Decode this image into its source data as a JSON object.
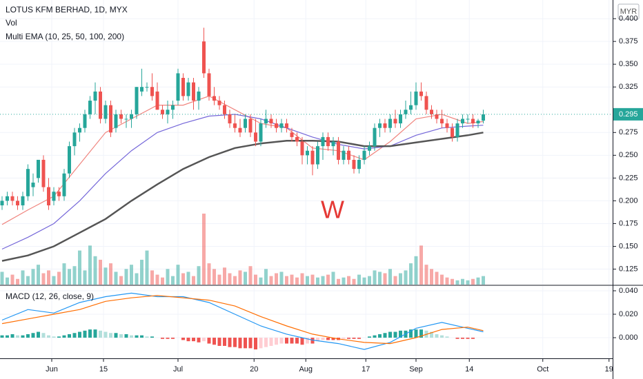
{
  "chart_data": [
    {
      "type": "candlestick",
      "title": "LOTUS KFM BERHAD, 1D, MYX",
      "volume_label": "Vol",
      "ema_label": "Multi EMA (10, 25, 50, 100, 200)",
      "annotation": "W",
      "currency": "MYR",
      "up_color": "#26a69a",
      "down_color": "#ef5350",
      "grid": true,
      "ohlc": [
        [
          0.195,
          0.205,
          0.19,
          0.2
        ],
        [
          0.2,
          0.21,
          0.195,
          0.205
        ],
        [
          0.205,
          0.21,
          0.195,
          0.2
        ],
        [
          0.2,
          0.205,
          0.19,
          0.195
        ],
        [
          0.195,
          0.21,
          0.19,
          0.205
        ],
        [
          0.205,
          0.24,
          0.2,
          0.235
        ],
        [
          0.215,
          0.23,
          0.205,
          0.22
        ],
        [
          0.225,
          0.245,
          0.22,
          0.245
        ],
        [
          0.245,
          0.25,
          0.21,
          0.215
        ],
        [
          0.215,
          0.225,
          0.19,
          0.195
        ],
        [
          0.2,
          0.215,
          0.195,
          0.21
        ],
        [
          0.21,
          0.215,
          0.2,
          0.205
        ],
        [
          0.205,
          0.235,
          0.2,
          0.23
        ],
        [
          0.23,
          0.265,
          0.225,
          0.26
        ],
        [
          0.26,
          0.28,
          0.25,
          0.275
        ],
        [
          0.275,
          0.285,
          0.265,
          0.28
        ],
        [
          0.28,
          0.3,
          0.275,
          0.295
        ],
        [
          0.295,
          0.315,
          0.29,
          0.31
        ],
        [
          0.31,
          0.33,
          0.295,
          0.32
        ],
        [
          0.32,
          0.325,
          0.285,
          0.29
        ],
        [
          0.29,
          0.31,
          0.285,
          0.305
        ],
        [
          0.305,
          0.31,
          0.27,
          0.275
        ],
        [
          0.28,
          0.3,
          0.275,
          0.295
        ],
        [
          0.295,
          0.3,
          0.285,
          0.29
        ],
        [
          0.29,
          0.295,
          0.28,
          0.29
        ],
        [
          0.29,
          0.3,
          0.28,
          0.295
        ],
        [
          0.295,
          0.325,
          0.29,
          0.325
        ],
        [
          0.32,
          0.345,
          0.315,
          0.325
        ],
        [
          0.325,
          0.33,
          0.32,
          0.325
        ],
        [
          0.325,
          0.34,
          0.31,
          0.315
        ],
        [
          0.32,
          0.33,
          0.3,
          0.3
        ],
        [
          0.3,
          0.305,
          0.29,
          0.295
        ],
        [
          0.295,
          0.31,
          0.285,
          0.3
        ],
        [
          0.3,
          0.31,
          0.29,
          0.305
        ],
        [
          0.31,
          0.345,
          0.305,
          0.34
        ],
        [
          0.335,
          0.34,
          0.31,
          0.315
        ],
        [
          0.315,
          0.335,
          0.31,
          0.33
        ],
        [
          0.33,
          0.335,
          0.3,
          0.31
        ],
        [
          0.31,
          0.325,
          0.3,
          0.32
        ],
        [
          0.375,
          0.39,
          0.335,
          0.34
        ],
        [
          0.34,
          0.345,
          0.31,
          0.315
        ],
        [
          0.315,
          0.325,
          0.305,
          0.31
        ],
        [
          0.31,
          0.315,
          0.3,
          0.305
        ],
        [
          0.305,
          0.31,
          0.29,
          0.295
        ],
        [
          0.295,
          0.3,
          0.28,
          0.285
        ],
        [
          0.285,
          0.295,
          0.275,
          0.28
        ],
        [
          0.28,
          0.29,
          0.27,
          0.275
        ],
        [
          0.28,
          0.295,
          0.275,
          0.29
        ],
        [
          0.29,
          0.295,
          0.27,
          0.275
        ],
        [
          0.275,
          0.29,
          0.26,
          0.265
        ],
        [
          0.265,
          0.29,
          0.26,
          0.285
        ],
        [
          0.285,
          0.3,
          0.28,
          0.29
        ],
        [
          0.29,
          0.295,
          0.28,
          0.285
        ],
        [
          0.285,
          0.29,
          0.275,
          0.28
        ],
        [
          0.28,
          0.29,
          0.275,
          0.285
        ],
        [
          0.285,
          0.29,
          0.275,
          0.28
        ],
        [
          0.275,
          0.28,
          0.265,
          0.27
        ],
        [
          0.27,
          0.275,
          0.26,
          0.265
        ],
        [
          0.265,
          0.27,
          0.24,
          0.25
        ],
        [
          0.25,
          0.26,
          0.24,
          0.255
        ],
        [
          0.255,
          0.26,
          0.228,
          0.24
        ],
        [
          0.24,
          0.265,
          0.235,
          0.26
        ],
        [
          0.26,
          0.275,
          0.245,
          0.27
        ],
        [
          0.27,
          0.275,
          0.255,
          0.26
        ],
        [
          0.26,
          0.27,
          0.25,
          0.265
        ],
        [
          0.265,
          0.27,
          0.24,
          0.245
        ],
        [
          0.245,
          0.26,
          0.24,
          0.255
        ],
        [
          0.255,
          0.26,
          0.24,
          0.245
        ],
        [
          0.245,
          0.25,
          0.23,
          0.235
        ],
        [
          0.235,
          0.25,
          0.23,
          0.245
        ],
        [
          0.245,
          0.26,
          0.24,
          0.255
        ],
        [
          0.255,
          0.265,
          0.25,
          0.26
        ],
        [
          0.26,
          0.285,
          0.255,
          0.28
        ],
        [
          0.28,
          0.29,
          0.27,
          0.285
        ],
        [
          0.285,
          0.29,
          0.275,
          0.28
        ],
        [
          0.28,
          0.295,
          0.275,
          0.29
        ],
        [
          0.29,
          0.3,
          0.28,
          0.285
        ],
        [
          0.285,
          0.3,
          0.28,
          0.295
        ],
        [
          0.295,
          0.31,
          0.29,
          0.3
        ],
        [
          0.3,
          0.32,
          0.295,
          0.305
        ],
        [
          0.305,
          0.33,
          0.3,
          0.32
        ],
        [
          0.32,
          0.33,
          0.31,
          0.315
        ],
        [
          0.315,
          0.32,
          0.295,
          0.3
        ],
        [
          0.3,
          0.305,
          0.29,
          0.295
        ],
        [
          0.295,
          0.3,
          0.285,
          0.29
        ],
        [
          0.29,
          0.3,
          0.28,
          0.285
        ],
        [
          0.285,
          0.29,
          0.275,
          0.28
        ],
        [
          0.28,
          0.285,
          0.265,
          0.27
        ],
        [
          0.27,
          0.29,
          0.265,
          0.285
        ],
        [
          0.285,
          0.295,
          0.28,
          0.29
        ],
        [
          0.29,
          0.295,
          0.285,
          0.29
        ],
        [
          0.29,
          0.295,
          0.28,
          0.285
        ],
        [
          0.285,
          0.29,
          0.28,
          0.288
        ],
        [
          0.288,
          0.3,
          0.285,
          0.295
        ]
      ],
      "volume": [
        18,
        10,
        14,
        8,
        20,
        12,
        22,
        28,
        16,
        20,
        12,
        18,
        30,
        22,
        26,
        48,
        20,
        55,
        40,
        35,
        24,
        30,
        18,
        12,
        22,
        28,
        16,
        35,
        48,
        20,
        14,
        10,
        22,
        12,
        28,
        16,
        18,
        12,
        26,
        100,
        30,
        22,
        14,
        24,
        16,
        12,
        20,
        18,
        26,
        14,
        10,
        22,
        12,
        16,
        18,
        12,
        14,
        10,
        16,
        12,
        14,
        10,
        12,
        14,
        18,
        8,
        10,
        12,
        8,
        14,
        10,
        12,
        20,
        18,
        16,
        22,
        12,
        16,
        20,
        30,
        40,
        55,
        28,
        22,
        18,
        14,
        10,
        8,
        6,
        8,
        6,
        8,
        10,
        12
      ],
      "volume_lim": [
        0,
        100
      ],
      "emas": [
        {
          "color": "#f0847e",
          "x": [
            0,
            5,
            10,
            15,
            20,
            25,
            30,
            35,
            40,
            45,
            50,
            55,
            60,
            65,
            70,
            75,
            80,
            85,
            90,
            93
          ],
          "values": [
            0.174,
            0.19,
            0.205,
            0.24,
            0.275,
            0.29,
            0.305,
            0.305,
            0.315,
            0.3,
            0.285,
            0.28,
            0.258,
            0.255,
            0.245,
            0.265,
            0.29,
            0.295,
            0.285,
            0.287
          ]
        },
        {
          "color": "#7466d9",
          "x": [
            0,
            5,
            10,
            15,
            20,
            25,
            30,
            35,
            40,
            45,
            50,
            55,
            60,
            65,
            70,
            75,
            80,
            85,
            90,
            93
          ],
          "values": [
            0.147,
            0.16,
            0.175,
            0.2,
            0.23,
            0.255,
            0.275,
            0.285,
            0.293,
            0.295,
            0.29,
            0.28,
            0.27,
            0.262,
            0.257,
            0.26,
            0.272,
            0.28,
            0.282,
            0.283
          ]
        },
        {
          "color": "#555555",
          "x": [
            0,
            5,
            10,
            15,
            20,
            25,
            30,
            35,
            40,
            45,
            50,
            55,
            60,
            65,
            70,
            75,
            80,
            85,
            90,
            93
          ],
          "values": [
            0.134,
            0.14,
            0.15,
            0.165,
            0.18,
            0.2,
            0.218,
            0.235,
            0.248,
            0.258,
            0.263,
            0.266,
            0.266,
            0.265,
            0.26,
            0.26,
            0.264,
            0.268,
            0.272,
            0.275
          ]
        }
      ],
      "last_price": 0.295,
      "xlim": [
        0,
        118
      ],
      "ylim": [
        0.108,
        0.4205
      ],
      "yticks": [
        {
          "value": 0.4,
          "label": "0.400"
        },
        0.375,
        {
          "value": 0.35,
          "label": "0.350"
        },
        0.325,
        0.275,
        {
          "value": 0.25,
          "label": "0.250"
        },
        0.225,
        {
          "value": 0.2,
          "label": "0.200"
        },
        0.175,
        {
          "value": 0.15,
          "label": "0.150"
        },
        0.125
      ],
      "xticks": [
        {
          "value": 9.6,
          "label": "Jun"
        },
        {
          "value": 19.6,
          "label": "15"
        },
        {
          "value": 34,
          "label": "Jul"
        },
        {
          "value": 48.7,
          "label": "20"
        },
        {
          "value": 58.7,
          "label": "Aug"
        },
        {
          "value": 70.3,
          "label": "17"
        },
        {
          "value": 80,
          "label": "Sep"
        },
        {
          "value": 90.3,
          "label": "14"
        },
        {
          "value": 104.5,
          "label": "Oct"
        },
        {
          "value": 117.3,
          "label": "19"
        }
      ]
    },
    {
      "type": "macd",
      "title": "MACD (12, 26, close, 9)",
      "grid": true,
      "histogram": [
        0.002,
        0.002,
        0.003,
        0.002,
        0.002,
        0.003,
        0.004,
        0.005,
        0.004,
        0.002,
        0.001,
        0.001,
        0.002,
        0.003,
        0.004,
        0.005,
        0.006,
        0.007,
        0.007,
        0.006,
        0.005,
        0.004,
        0.004,
        0.003,
        0.003,
        0.002,
        0.002,
        0.002,
        0.001,
        0.001,
        0,
        -0.001,
        -0.001,
        -0.001,
        0,
        -0.002,
        -0.003,
        -0.003,
        -0.004,
        -0.003,
        -0.005,
        -0.006,
        -0.007,
        -0.007,
        -0.008,
        -0.008,
        -0.009,
        -0.009,
        -0.009,
        -0.01,
        -0.009,
        -0.008,
        -0.007,
        -0.006,
        -0.005,
        -0.005,
        -0.005,
        -0.005,
        -0.006,
        -0.005,
        -0.005,
        -0.003,
        -0.002,
        -0.002,
        -0.002,
        -0.002,
        -0.001,
        -0.001,
        -0.001,
        -0.001,
        0,
        0.001,
        0.002,
        0.003,
        0.004,
        0.005,
        0.005,
        0.006,
        0.006,
        0.007,
        0.007,
        0.007,
        0.006,
        0.005,
        0.003,
        0.002,
        0.001,
        0,
        -0.001,
        -0.001,
        -0.001,
        -0.001,
        0,
        0
      ],
      "series": [
        {
          "color": "#2196f3",
          "x": [
            0,
            5,
            10,
            15,
            20,
            25,
            30,
            35,
            40,
            45,
            50,
            55,
            60,
            65,
            70,
            75,
            80,
            85,
            90,
            93
          ],
          "values": [
            0.015,
            0.024,
            0.021,
            0.03,
            0.035,
            0.038,
            0.035,
            0.035,
            0.03,
            0.02,
            0.01,
            0.003,
            -0.002,
            -0.005,
            -0.01,
            -0.004,
            0.008,
            0.013,
            0.008,
            0.005
          ]
        },
        {
          "color": "#ff6d00",
          "x": [
            0,
            5,
            10,
            15,
            20,
            25,
            30,
            35,
            40,
            45,
            50,
            55,
            60,
            65,
            70,
            75,
            80,
            85,
            90,
            93
          ],
          "values": [
            0.012,
            0.016,
            0.02,
            0.024,
            0.031,
            0.034,
            0.036,
            0.034,
            0.032,
            0.027,
            0.018,
            0.01,
            0.003,
            -0.001,
            -0.004,
            -0.005,
            0,
            0.007,
            0.009,
            0.006
          ]
        }
      ],
      "ylim": [
        -0.0176,
        0.0441
      ],
      "yticks": [
        {
          "value": 0.04,
          "label": "0.040"
        },
        {
          "value": 0.02,
          "label": "0.020"
        },
        {
          "value": 0,
          "label": "0.000"
        }
      ]
    }
  ]
}
